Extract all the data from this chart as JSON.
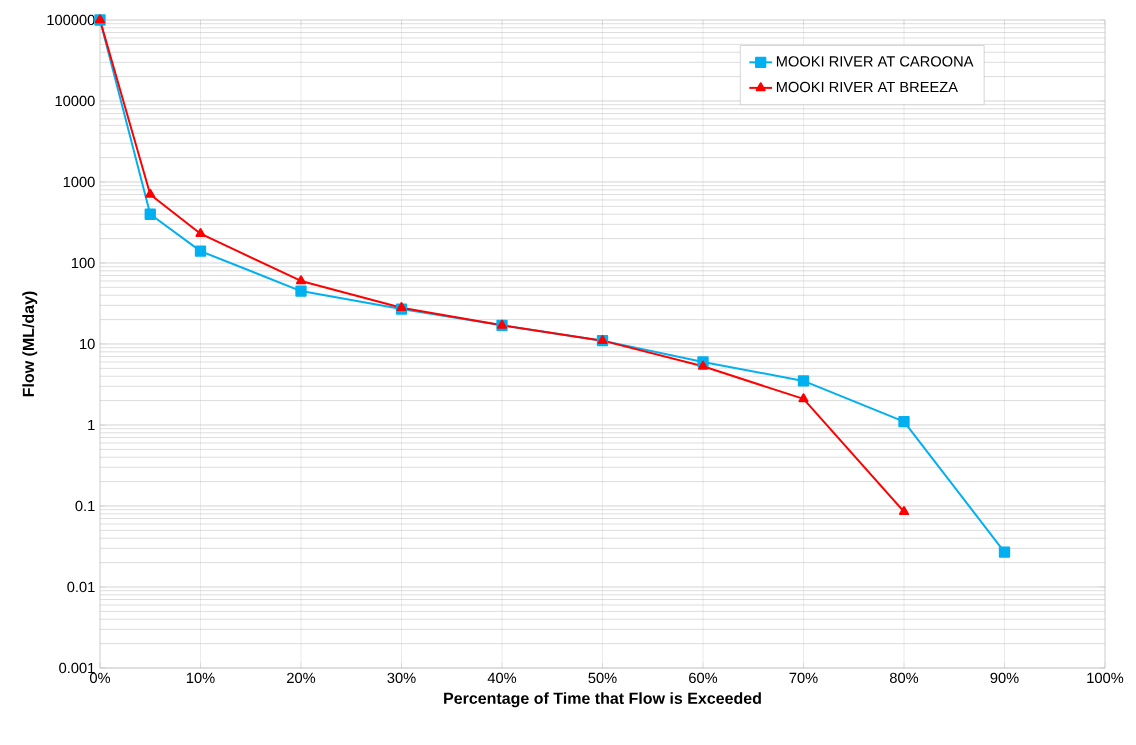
{
  "chart_data": {
    "type": "line",
    "xlabel": "Percentage of Time that Flow is Exceeded",
    "ylabel": "Flow (ML/day)",
    "xlim": [
      0,
      100
    ],
    "xticks": [
      {
        "value": 0,
        "label": "0%"
      },
      {
        "value": 10,
        "label": "10%"
      },
      {
        "value": 20,
        "label": "20%"
      },
      {
        "value": 30,
        "label": "30%"
      },
      {
        "value": 40,
        "label": "40%"
      },
      {
        "value": 50,
        "label": "50%"
      },
      {
        "value": 60,
        "label": "60%"
      },
      {
        "value": 70,
        "label": "70%"
      },
      {
        "value": 80,
        "label": "80%"
      },
      {
        "value": 90,
        "label": "90%"
      },
      {
        "value": 100,
        "label": "100%"
      }
    ],
    "ylim": [
      0.001,
      100000
    ],
    "yticks": [
      0.001,
      0.01,
      0.1,
      1,
      10,
      100,
      1000,
      10000,
      100000
    ],
    "log": "y",
    "grid": true,
    "legend": "top right",
    "line_style": "solid",
    "series": [
      {
        "name": "MOOKI RIVER AT CAROONA",
        "color": "#00b0f0",
        "marker": "square",
        "x": [
          0,
          5,
          10,
          20,
          30,
          40,
          50,
          60,
          70,
          80,
          90
        ],
        "values": [
          100000,
          400,
          140,
          45,
          27,
          17,
          11,
          6,
          3.5,
          1.1,
          0.027
        ]
      },
      {
        "name": "MOOKI RIVER AT BREEZA",
        "color": "#ff0000",
        "marker": "triangle",
        "x": [
          0,
          5,
          10,
          20,
          30,
          40,
          50,
          60,
          70,
          80
        ],
        "values": [
          100000,
          700,
          230,
          60,
          28,
          17,
          11,
          5.3,
          2.1,
          0.085
        ]
      }
    ]
  }
}
